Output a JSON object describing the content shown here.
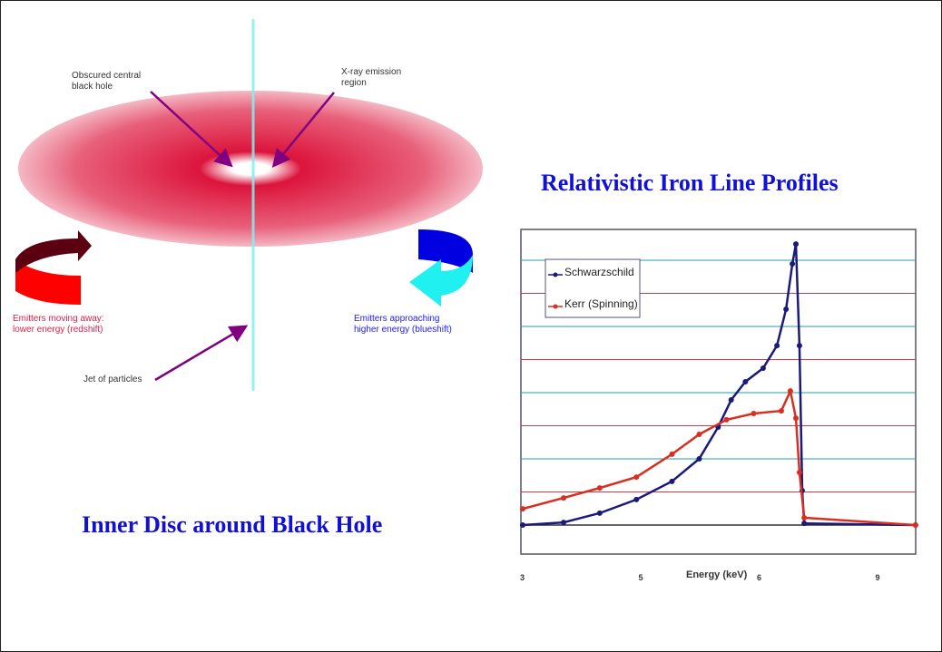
{
  "diagram": {
    "title": "Inner Disc around Black Hole",
    "labels": {
      "black_hole": "Obscured central\nblack hole",
      "xray": "X-ray emission\nregion",
      "redshift": "Emitters moving away:\nlower energy (redshift)",
      "blueshift": "Emitters approaching\nhigher energy (blueshift)",
      "jet": "Jet of particles"
    },
    "colors": {
      "disc": "#dc143c",
      "jet": "#80f0f0",
      "pointer": "#800080",
      "redshift_text": "#e0204a",
      "blueshift_text": "#2020ff"
    }
  },
  "chart_data": {
    "type": "line",
    "title": "Relativistic Iron Line Profiles",
    "xlabel": "Energy (keV)",
    "ylabel": "",
    "x_ticks": [
      3,
      5,
      6,
      9
    ],
    "ylim": [
      -0.9,
      8.9
    ],
    "grid": true,
    "legend_position": "top-left",
    "series": [
      {
        "name": "Schwarzschild",
        "color": "#1a1a7a",
        "x": [
          3,
          3.69,
          4.3,
          4.92,
          5.26,
          5.49,
          5.65,
          5.76,
          5.88,
          6.09,
          6.44,
          6.67,
          6.83,
          6.92,
          7.01,
          7.08,
          7.13,
          9.95
        ],
        "y": [
          0,
          0.08,
          0.36,
          0.77,
          1.32,
          2.0,
          2.96,
          3.78,
          4.33,
          4.74,
          5.42,
          6.52,
          7.89,
          8.49,
          5.42,
          1.04,
          0.05,
          0
        ]
      },
      {
        "name": "Kerr (Spinning)",
        "color": "#d83020",
        "x": [
          3,
          3.69,
          4.3,
          4.92,
          5.26,
          5.49,
          5.72,
          5.95,
          6.55,
          6.78,
          6.92,
          7.01,
          7.13,
          9.95
        ],
        "y": [
          0.49,
          0.82,
          1.12,
          1.45,
          2.14,
          2.74,
          3.18,
          3.37,
          3.45,
          4.05,
          3.23,
          1.59,
          0.22,
          0
        ]
      }
    ]
  }
}
